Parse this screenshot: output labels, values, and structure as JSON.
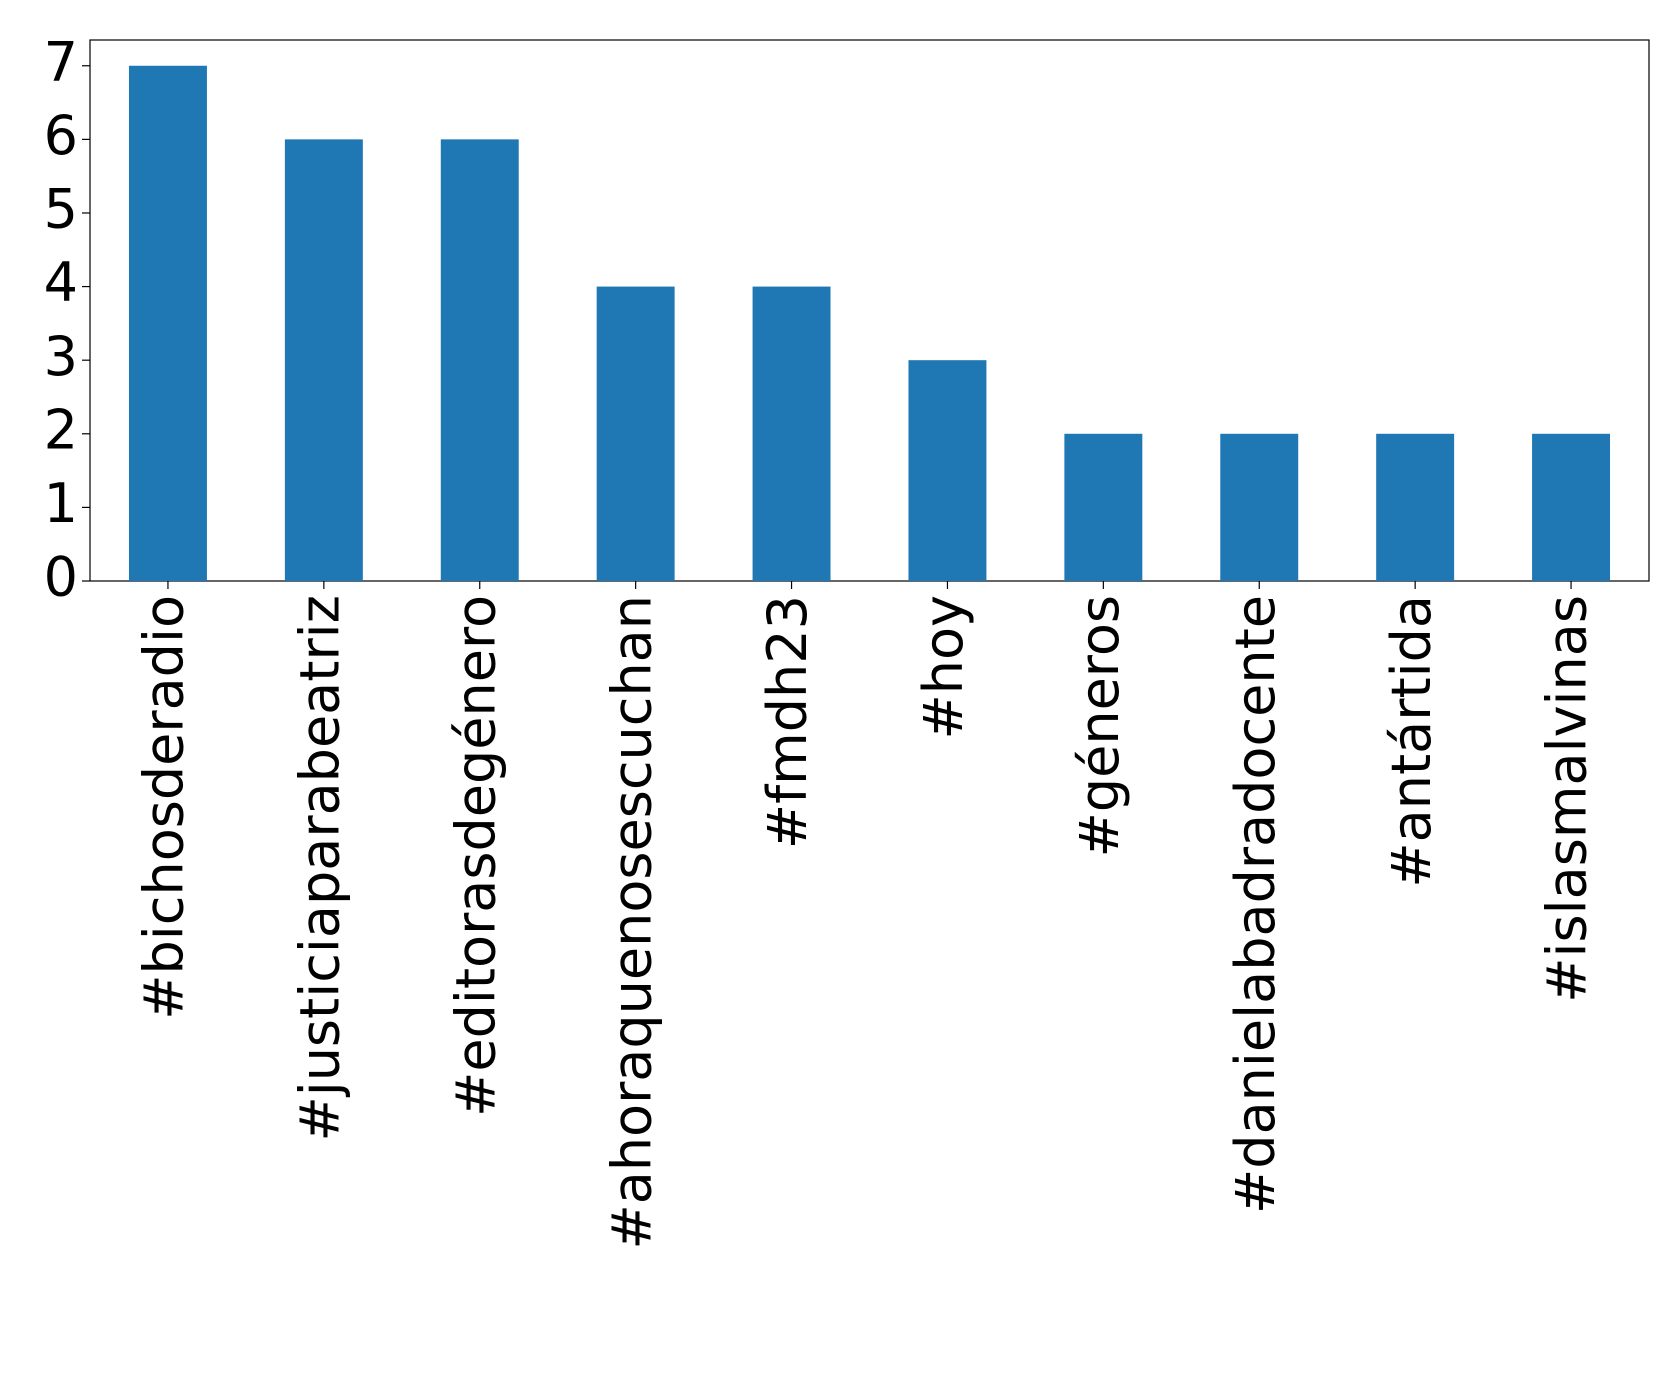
{
  "chart_data": {
    "type": "bar",
    "categories": [
      "#bichosderadio",
      "#justiciaparabeatriz",
      "#editorasdegénero",
      "#ahoraquenosescuchan",
      "#fmdh23",
      "#hoy",
      "#géneros",
      "#danielabadradocente",
      "#antártida",
      "#islasmalvinas"
    ],
    "values": [
      7,
      6,
      6,
      4,
      4,
      3,
      2,
      2,
      2,
      2
    ],
    "color": "#1f77b4",
    "ylim": [
      0,
      7.35
    ],
    "yticks": [
      0,
      1,
      2,
      3,
      4,
      5,
      6,
      7
    ],
    "grid": false
  }
}
